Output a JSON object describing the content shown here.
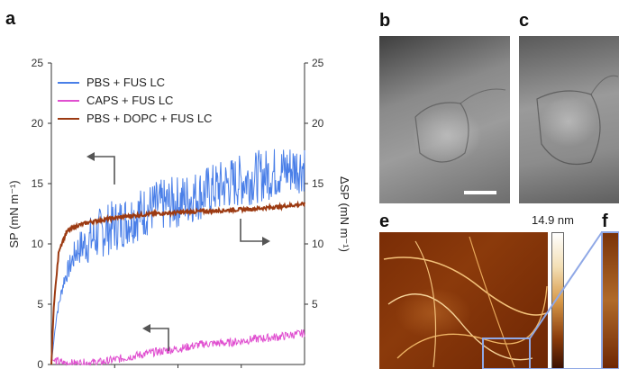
{
  "figure": {
    "panel_letters": [
      "a",
      "b",
      "c",
      "e",
      "f"
    ],
    "colorbar_label": "14.9 nm"
  },
  "chart_data": {
    "type": "line",
    "title": "",
    "ylabel": "SP (mN m⁻¹)",
    "y2label": "ΔSP (mN m⁻¹)",
    "ylim": [
      0,
      25
    ],
    "y2lim": [
      0,
      25
    ],
    "left_ticks": [
      "0",
      "5",
      "10",
      "15",
      "20",
      "25"
    ],
    "right_ticks": [
      "5",
      "10",
      "15",
      "20",
      "25"
    ],
    "legend": {
      "placement": "top-left"
    },
    "grid": false,
    "series": [
      {
        "name": "PBS + FUS LC",
        "axis": "left",
        "color": "#4a7fe8",
        "x": [
          0,
          0.02,
          0.05,
          0.1,
          0.2,
          0.3,
          0.4,
          0.5,
          0.6,
          0.7,
          0.8,
          0.9,
          1.0
        ],
        "y": [
          0,
          4,
          7,
          9.5,
          11,
          12,
          13,
          13.5,
          14.2,
          15,
          15.5,
          16,
          16.5
        ]
      },
      {
        "name": "CAPS + FUS LC",
        "axis": "left",
        "color": "#e04fd0",
        "x": [
          0,
          0.05,
          0.1,
          0.2,
          0.3,
          0.4,
          0.5,
          0.6,
          0.7,
          0.8,
          0.9,
          1.0
        ],
        "y": [
          0.4,
          0.1,
          0.1,
          0.2,
          0.6,
          1.0,
          1.3,
          1.7,
          1.8,
          2.1,
          2.3,
          2.6
        ]
      },
      {
        "name": "PBS + DOPC + FUS LC",
        "axis": "right",
        "color": "#9c3a12",
        "x": [
          0,
          0.01,
          0.03,
          0.06,
          0.1,
          0.15,
          0.2,
          0.3,
          0.4,
          0.5,
          0.6,
          0.7,
          0.8,
          0.9,
          1.0
        ],
        "y": [
          0,
          5,
          9.5,
          11,
          11.5,
          11.8,
          12.0,
          12.3,
          12.5,
          12.6,
          12.7,
          12.8,
          12.9,
          13.1,
          13.3
        ]
      }
    ]
  }
}
